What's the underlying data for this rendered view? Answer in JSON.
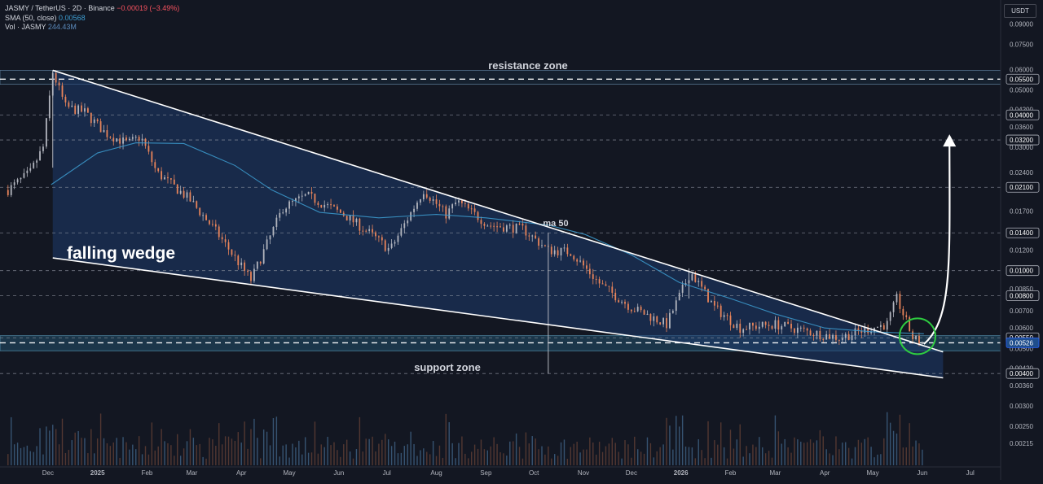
{
  "legend": {
    "symbol": "JASMY / TetherUS · 2D · Binance",
    "change": "−0.00019 (−3.49%)",
    "sma_label": "SMA (50, close)",
    "sma_value": "0.00568",
    "vol_label": "Vol · JASMY",
    "vol_value": "244.43M"
  },
  "currency": "USDT",
  "annotations": {
    "resistance": "resistance zone",
    "support": "support zone",
    "wedge": "falling wedge",
    "ma": "ma 50"
  },
  "colors": {
    "background": "#131722",
    "up": "#b2b5be",
    "down": "#e8845a",
    "sma": "#3d9dd1",
    "wedge_fill": "#1d3a6b",
    "zone_fill": "#22506b",
    "breakout_circle": "#2ecc40",
    "text": "#d1d4dc"
  },
  "chart_data": {
    "type": "candlestick",
    "title": "JASMY / TetherUS · 2D · Binance",
    "y_scale": "log",
    "ylim": [
      0.0019,
      0.102
    ],
    "y_ticks": [
      "0.09000",
      "0.07500",
      "0.06000",
      "0.05000",
      "0.04200",
      "0.03600",
      "0.03000",
      "0.02400",
      "0.02100",
      "0.01700",
      "0.01400",
      "0.01200",
      "0.01000",
      "0.00850",
      "0.00700",
      "0.00600",
      "0.00500",
      "0.00420",
      "0.00360",
      "0.00300",
      "0.00250",
      "0.00215"
    ],
    "highlighted_levels": [
      "0.05500",
      "0.04000",
      "0.03200",
      "0.02100",
      "0.01400",
      "0.01000",
      "0.00800",
      "0.00550",
      "0.00526",
      "0.00400"
    ],
    "x_ticks": [
      "Dec",
      "2025",
      "Feb",
      "Mar",
      "Apr",
      "May",
      "Jun",
      "Jul",
      "Aug",
      "Sep",
      "Oct",
      "Nov",
      "Dec",
      "2026",
      "Feb",
      "Mar",
      "Apr",
      "May",
      "Jun",
      "Jul"
    ],
    "x_range": [
      "2024-11-01",
      "2026-07-20"
    ],
    "price_path": [
      [
        "2024-11-06",
        0.0205
      ],
      [
        "2024-11-20",
        0.024
      ],
      [
        "2024-11-28",
        0.03
      ],
      [
        "2024-12-04",
        0.0585
      ],
      [
        "2024-12-12",
        0.043
      ],
      [
        "2024-12-24",
        0.041
      ],
      [
        "2025-01-06",
        0.034
      ],
      [
        "2025-01-20",
        0.031
      ],
      [
        "2025-01-28",
        0.033
      ],
      [
        "2025-02-07",
        0.024
      ],
      [
        "2025-02-27",
        0.019
      ],
      [
        "2025-03-15",
        0.0145
      ],
      [
        "2025-04-07",
        0.0092
      ],
      [
        "2025-04-27",
        0.0175
      ],
      [
        "2025-05-12",
        0.0195
      ],
      [
        "2025-06-04",
        0.0165
      ],
      [
        "2025-06-20",
        0.014
      ],
      [
        "2025-07-03",
        0.012
      ],
      [
        "2025-07-24",
        0.0205
      ],
      [
        "2025-08-07",
        0.0165
      ],
      [
        "2025-08-14",
        0.0185
      ],
      [
        "2025-09-03",
        0.015
      ],
      [
        "2025-09-24",
        0.0145
      ],
      [
        "2025-10-10",
        0.012
      ],
      [
        "2025-10-24",
        0.0118
      ],
      [
        "2025-11-12",
        0.0088
      ],
      [
        "2025-12-01",
        0.0072
      ],
      [
        "2025-12-23",
        0.0062
      ],
      [
        "2026-01-07",
        0.0099
      ],
      [
        "2026-01-22",
        0.0072
      ],
      [
        "2026-02-07",
        0.006
      ],
      [
        "2026-03-01",
        0.0062
      ],
      [
        "2026-03-22",
        0.0058
      ],
      [
        "2026-04-10",
        0.0055
      ],
      [
        "2026-04-30",
        0.006
      ],
      [
        "2026-05-10",
        0.0062
      ],
      [
        "2026-05-16",
        0.0078
      ],
      [
        "2026-05-20",
        0.0068
      ],
      [
        "2026-05-26",
        0.0055
      ],
      [
        "2026-06-02",
        0.0052
      ]
    ],
    "sma50": [
      [
        "2024-12-03",
        0.0215
      ],
      [
        "2025-01-01",
        0.0285
      ],
      [
        "2025-01-25",
        0.0312
      ],
      [
        "2025-02-24",
        0.031
      ],
      [
        "2025-03-28",
        0.0255
      ],
      [
        "2025-04-20",
        0.0205
      ],
      [
        "2025-05-20",
        0.0168
      ],
      [
        "2025-06-26",
        0.016
      ],
      [
        "2025-08-01",
        0.0165
      ],
      [
        "2025-09-01",
        0.016
      ],
      [
        "2025-10-10",
        0.015
      ],
      [
        "2025-11-02",
        0.0138
      ],
      [
        "2025-12-01",
        0.0115
      ],
      [
        "2025-12-31",
        0.009
      ],
      [
        "2026-02-01",
        0.0078
      ],
      [
        "2026-03-01",
        0.0068
      ],
      [
        "2026-04-01",
        0.006
      ],
      [
        "2026-05-01",
        0.0058
      ],
      [
        "2026-06-02",
        0.0057
      ]
    ],
    "last_price": 0.00526,
    "sma_last": 0.00568,
    "zones": {
      "resistance": [
        0.0525,
        0.0595
      ],
      "support": [
        0.0049,
        0.0056
      ]
    },
    "trendlines": {
      "upper": [
        [
          "2024-12-04",
          0.0595
        ],
        [
          "2026-06-14",
          0.00485
        ]
      ],
      "lower": [
        [
          "2024-12-04",
          0.0112
        ],
        [
          "2026-06-14",
          0.00385
        ]
      ]
    },
    "projection": [
      [
        "2026-06-02",
        0.0052
      ],
      [
        "2026-06-10",
        0.0065
      ],
      [
        "2026-06-15",
        0.011
      ],
      [
        "2026-06-18",
        0.032
      ]
    ],
    "volume": {
      "units": "JASMY",
      "last": "244.43M"
    }
  }
}
